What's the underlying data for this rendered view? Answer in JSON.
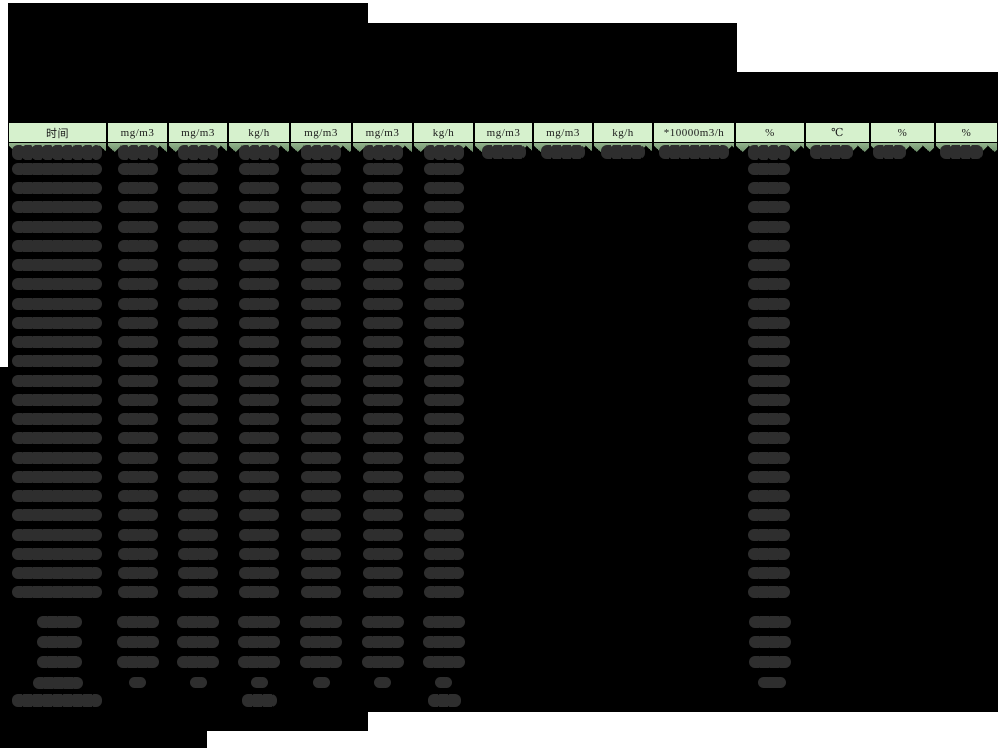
{
  "page": {
    "description": "scanned monitoring-report data sheet, all values blacked out",
    "redacted": true
  },
  "header": {
    "columns": [
      "时间",
      "mg/m3",
      "mg/m3",
      "kg/h",
      "mg/m3",
      "mg/m3",
      "kg/h",
      "mg/m3",
      "mg/m3",
      "kg/h",
      "*10000m3/h",
      "%",
      "℃",
      "%",
      "%"
    ]
  },
  "table": {
    "main_row_count": 24,
    "summary_row_count": 4,
    "footer_row_count": 1,
    "all_values_redacted": true
  },
  "colors": {
    "page_bg": "#ffffff",
    "redaction_black": "#000000",
    "blob_gray": "#2e2e2e",
    "header_bg": "#d6f1cd",
    "header_text": "#1b1b1b",
    "teeth_green_light": "#94b58e",
    "teeth_green_dark": "#6e906b"
  }
}
